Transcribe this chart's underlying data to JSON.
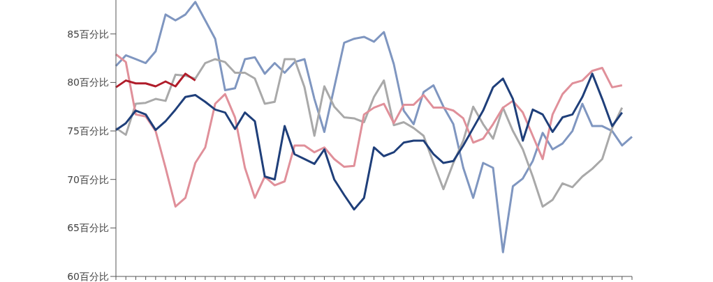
{
  "chart_data": {
    "type": "line",
    "categories": [
      null,
      null,
      null,
      null,
      null,
      null,
      null,
      null,
      null,
      null,
      null,
      null,
      null,
      null,
      null,
      null,
      null,
      null,
      null,
      null,
      null,
      null,
      null,
      null,
      null,
      null,
      null,
      null,
      null,
      null,
      null,
      null,
      null,
      null,
      null,
      null,
      null,
      null,
      null,
      null,
      null,
      null,
      null,
      null,
      null,
      null,
      null,
      null,
      null,
      null,
      null,
      null,
      null
    ],
    "series": [
      {
        "color": "#7f96c0",
        "values": [
          81.7,
          82.8,
          82.4,
          82.0,
          83.2,
          87.0,
          86.4,
          87.0,
          88.3,
          86.4,
          84.5,
          79.2,
          79.4,
          82.4,
          82.6,
          80.9,
          82.0,
          81.0,
          82.1,
          82.4,
          78.3,
          74.9,
          79.5,
          84.1,
          84.5,
          84.7,
          84.2,
          85.2,
          81.9,
          77.1,
          75.7,
          79.0,
          79.7,
          77.5,
          75.7,
          71.2,
          68.1,
          71.7,
          71.2,
          62.5,
          69.3,
          70.1,
          71.9,
          74.8,
          73.1,
          73.7,
          75.0,
          77.8,
          75.5,
          75.5,
          75.0,
          73.5,
          74.4
        ]
      },
      {
        "color": "#a9a9a9",
        "values": [
          75.3,
          74.6,
          77.8,
          77.9,
          78.3,
          78.1,
          80.8,
          80.7,
          80.4,
          82.0,
          82.4,
          82.1,
          81.0,
          81.0,
          80.4,
          77.8,
          78.0,
          82.4,
          82.4,
          79.5,
          74.5,
          79.6,
          77.5,
          76.4,
          76.3,
          75.9,
          78.5,
          80.2,
          75.6,
          75.9,
          75.3,
          74.5,
          71.7,
          69.0,
          71.7,
          74.0,
          77.5,
          75.7,
          74.2,
          77.4,
          75.0,
          73.1,
          70.3,
          67.2,
          67.9,
          69.6,
          69.2,
          70.3,
          71.1,
          72.1,
          75.3,
          77.4,
          null
        ]
      },
      {
        "color": "#e0909a",
        "values": [
          82.9,
          82.1,
          76.7,
          76.5,
          75.0,
          71.2,
          67.2,
          68.1,
          71.7,
          73.3,
          77.8,
          78.8,
          76.4,
          71.2,
          68.1,
          70.3,
          69.4,
          69.8,
          73.5,
          73.5,
          72.8,
          73.3,
          72.1,
          71.3,
          71.4,
          76.7,
          77.4,
          77.8,
          75.8,
          77.7,
          77.7,
          78.7,
          77.4,
          77.4,
          77.1,
          76.3,
          73.8,
          74.2,
          75.7,
          77.4,
          78.1,
          76.9,
          74.5,
          72.1,
          76.7,
          78.8,
          79.9,
          80.2,
          81.2,
          81.5,
          79.5,
          79.7,
          null
        ]
      },
      {
        "color": "#1f3f7a",
        "values": [
          75.1,
          75.8,
          77.1,
          76.7,
          75.1,
          76.0,
          77.2,
          78.5,
          78.7,
          78.0,
          77.2,
          76.9,
          75.2,
          76.9,
          76.0,
          70.3,
          70.0,
          75.5,
          72.6,
          72.1,
          71.6,
          73.1,
          70.0,
          68.4,
          66.9,
          68.1,
          73.3,
          72.4,
          72.8,
          73.8,
          74.0,
          74.0,
          72.6,
          71.7,
          71.9,
          73.5,
          75.3,
          77.1,
          79.5,
          80.4,
          78.3,
          74.0,
          77.2,
          76.7,
          74.9,
          76.4,
          76.7,
          78.5,
          80.9,
          78.3,
          75.5,
          76.9,
          null
        ]
      },
      {
        "color": "#b01c2a",
        "values": [
          79.5,
          80.2,
          79.9,
          79.9,
          79.6,
          80.1,
          79.6,
          80.9,
          80.2,
          null,
          null,
          null,
          null,
          null,
          null,
          null,
          null,
          null,
          null,
          null,
          null,
          null,
          null,
          null,
          null,
          null,
          null,
          null,
          null,
          null,
          null,
          null,
          null,
          null,
          null,
          null,
          null,
          null,
          null,
          null,
          null,
          null,
          null,
          null,
          null,
          null,
          null,
          null,
          null,
          null,
          null,
          null,
          null
        ]
      }
    ],
    "ylim": [
      60,
      88.5
    ],
    "yticks": [
      {
        "value": 60,
        "label": "60百分比"
      },
      {
        "value": 65,
        "label": "65百分比"
      },
      {
        "value": 70,
        "label": "70百分比"
      },
      {
        "value": 75,
        "label": "75百分比"
      },
      {
        "value": 80,
        "label": "80百分比"
      },
      {
        "value": 85,
        "label": "85百分比"
      }
    ],
    "tick_labels": "y",
    "grid": false,
    "marker": "none",
    "line_style": "solid"
  }
}
